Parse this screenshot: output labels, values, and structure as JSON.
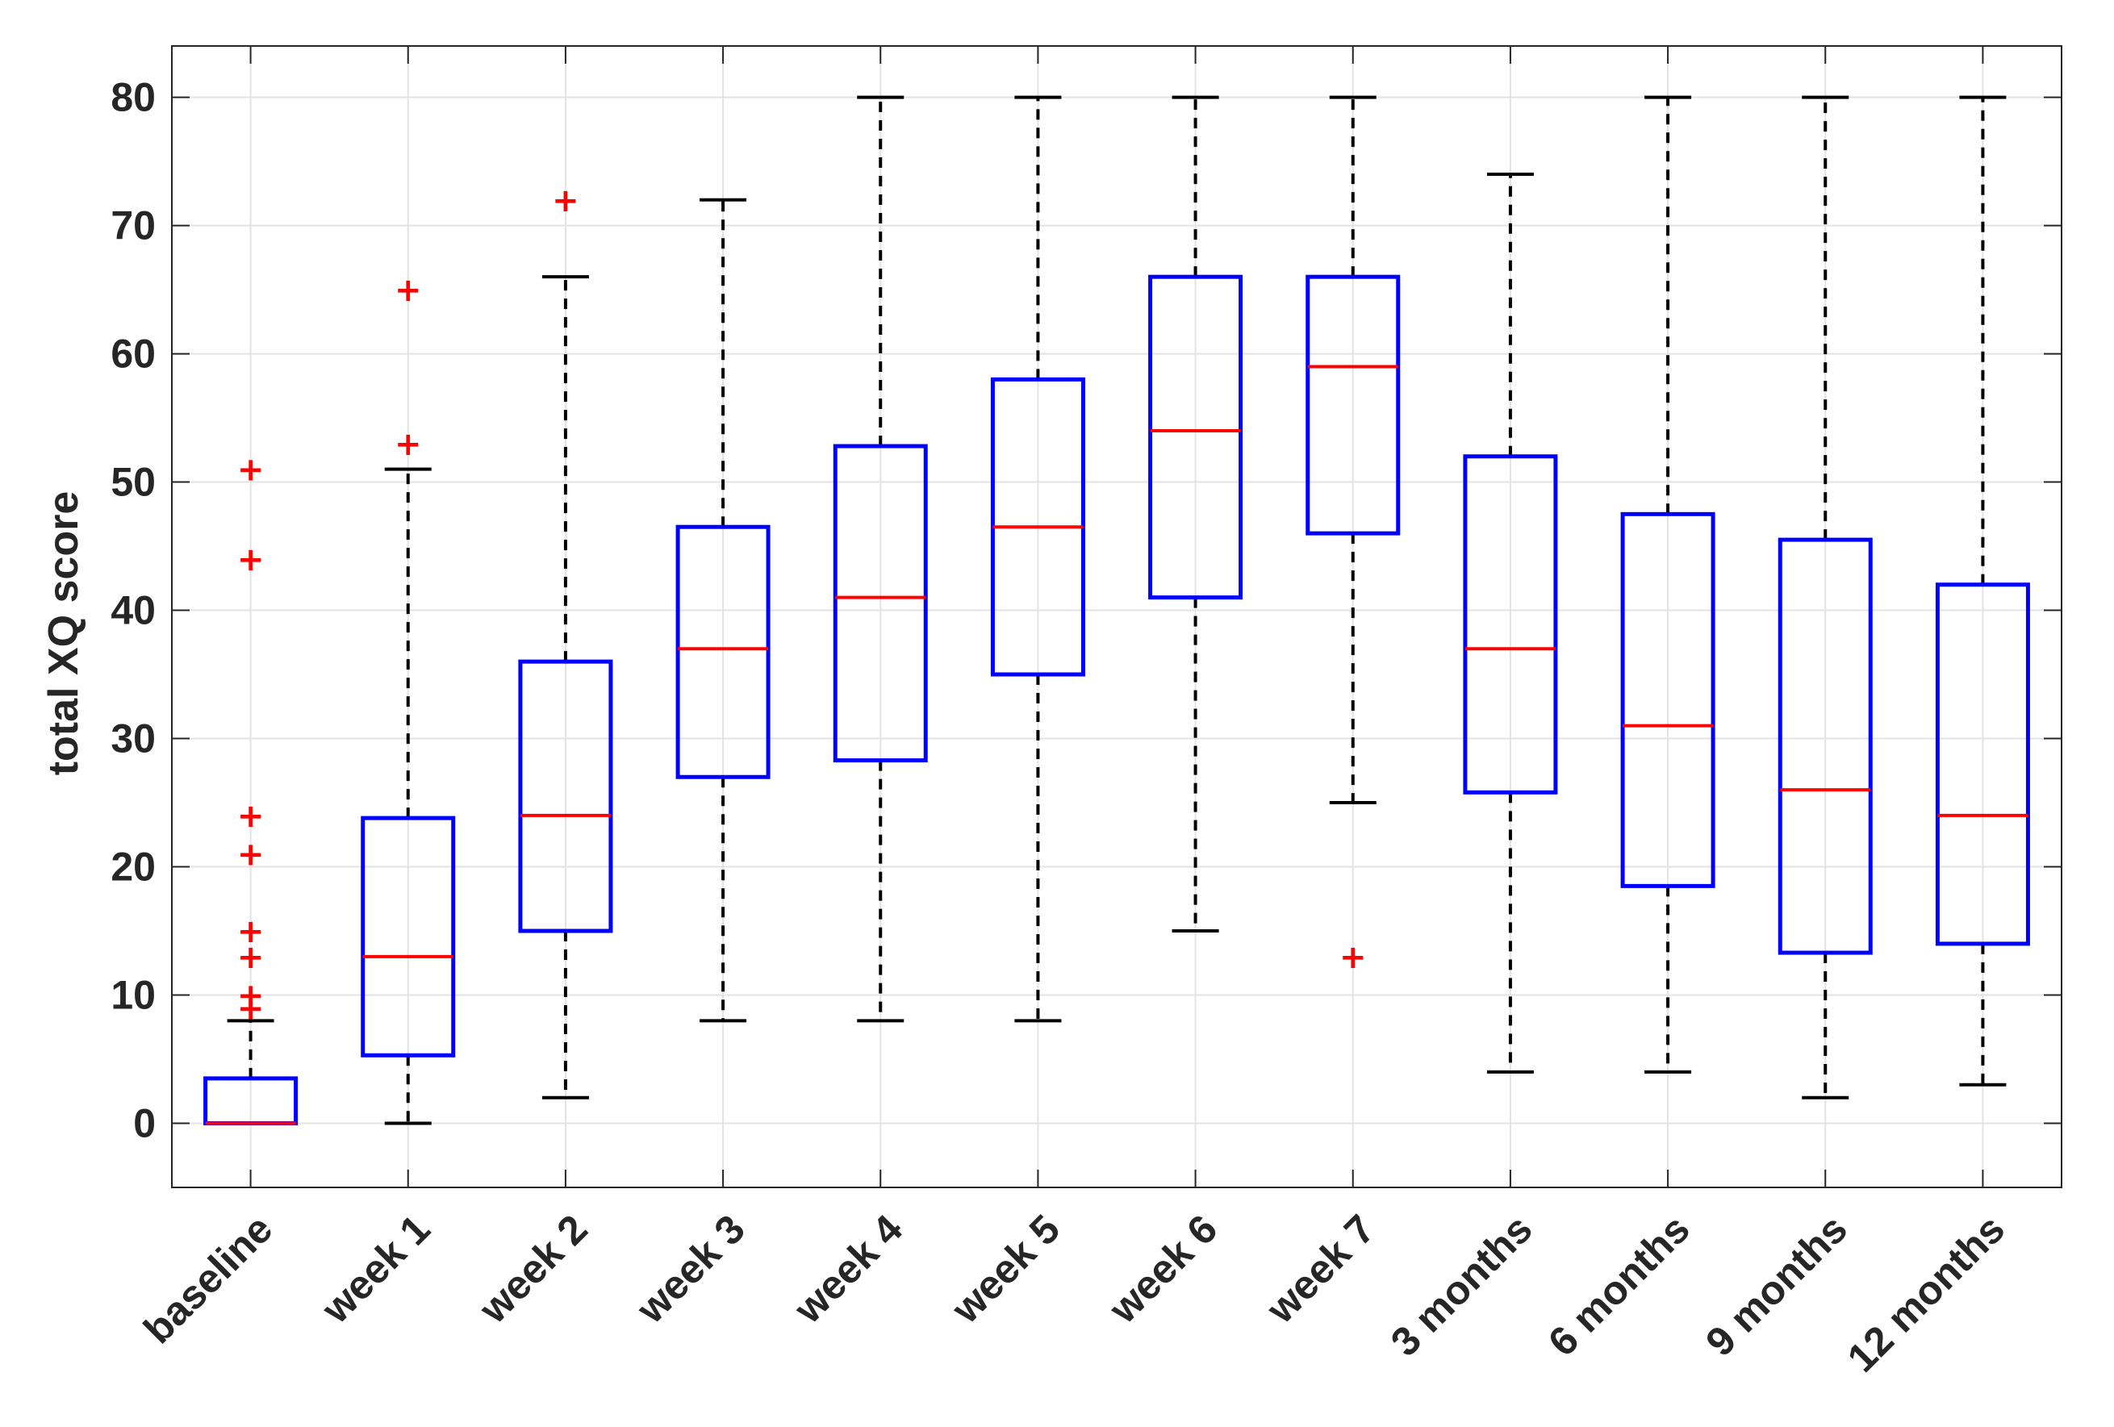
{
  "chart_data": {
    "type": "boxplot",
    "title": "",
    "xlabel": "",
    "ylabel": "total XQ score",
    "ylim": [
      -5,
      84
    ],
    "yticks": [
      0,
      10,
      20,
      30,
      40,
      50,
      60,
      70,
      80
    ],
    "grid": true,
    "legend": "none",
    "categories": [
      "baseline",
      "week 1",
      "week 2",
      "week 3",
      "week 4",
      "week 5",
      "week 6",
      "week 7",
      "3 months",
      "6 months",
      "9 months",
      "12 months"
    ],
    "series": [
      {
        "name": "baseline",
        "lower_whisker": 0,
        "q1": 0,
        "median": 0,
        "q3": 3.5,
        "upper_whisker": 8,
        "outliers": [
          9,
          10,
          13,
          15,
          21,
          24,
          44,
          51
        ]
      },
      {
        "name": "week 1",
        "lower_whisker": 0,
        "q1": 5.3,
        "median": 13,
        "q3": 23.8,
        "upper_whisker": 51,
        "outliers": [
          53,
          65
        ]
      },
      {
        "name": "week 2",
        "lower_whisker": 2,
        "q1": 15,
        "median": 24,
        "q3": 36,
        "upper_whisker": 66,
        "outliers": [
          72
        ]
      },
      {
        "name": "week 3",
        "lower_whisker": 8,
        "q1": 27,
        "median": 37,
        "q3": 46.5,
        "upper_whisker": 72,
        "outliers": []
      },
      {
        "name": "week 4",
        "lower_whisker": 8,
        "q1": 28.3,
        "median": 41,
        "q3": 52.8,
        "upper_whisker": 80,
        "outliers": []
      },
      {
        "name": "week 5",
        "lower_whisker": 8,
        "q1": 35,
        "median": 46.5,
        "q3": 58,
        "upper_whisker": 80,
        "outliers": []
      },
      {
        "name": "week 6",
        "lower_whisker": 15,
        "q1": 41,
        "median": 54,
        "q3": 66,
        "upper_whisker": 80,
        "outliers": []
      },
      {
        "name": "week 7",
        "lower_whisker": 25,
        "q1": 46,
        "median": 59,
        "q3": 66,
        "upper_whisker": 80,
        "outliers": [
          13
        ]
      },
      {
        "name": "3 months",
        "lower_whisker": 4,
        "q1": 25.8,
        "median": 37,
        "q3": 52,
        "upper_whisker": 74,
        "outliers": []
      },
      {
        "name": "6 months",
        "lower_whisker": 4,
        "q1": 18.5,
        "median": 31,
        "q3": 47.5,
        "upper_whisker": 80,
        "outliers": []
      },
      {
        "name": "9 months",
        "lower_whisker": 2,
        "q1": 13.3,
        "median": 26,
        "q3": 45.5,
        "upper_whisker": 80,
        "outliers": []
      },
      {
        "name": "12 months",
        "lower_whisker": 3,
        "q1": 14,
        "median": 24,
        "q3": 42,
        "upper_whisker": 80,
        "outliers": []
      }
    ],
    "colors": {
      "box": "#0000ff",
      "median": "#ff0000",
      "whisker": "#000000",
      "outlier": "#ff0000",
      "grid": "#e3e3e3",
      "axis": "#262626",
      "text": "#262626"
    },
    "outlier_marker": "+"
  }
}
